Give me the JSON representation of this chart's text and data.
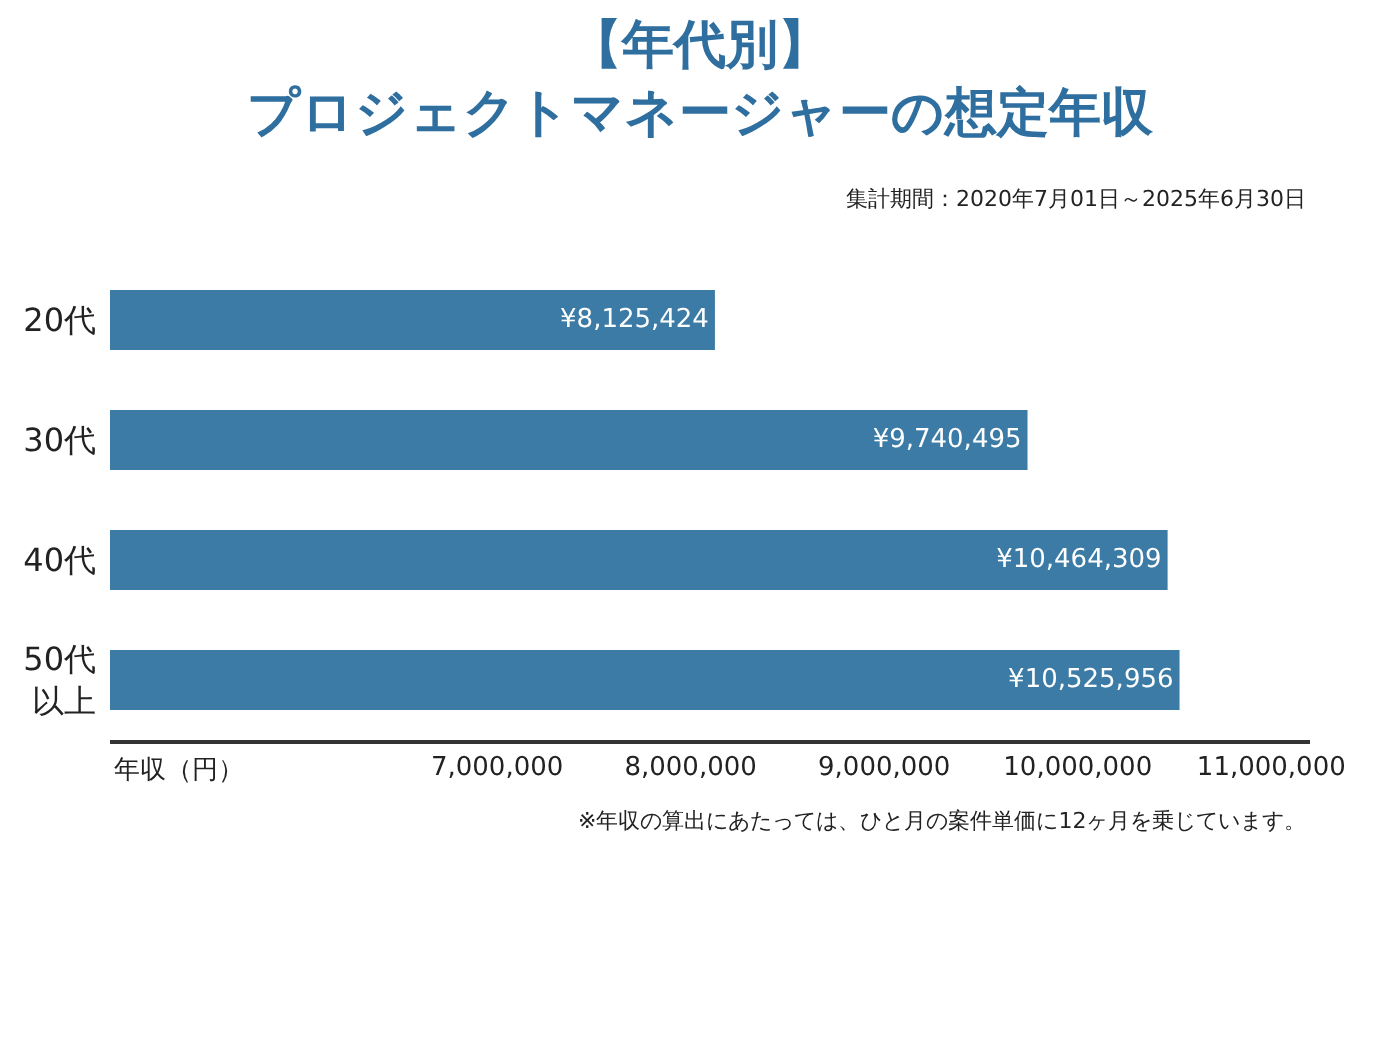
{
  "chart_data": {
    "type": "bar",
    "orientation": "horizontal",
    "title": "【年代別】プロジェクトマネージャーの想定年収",
    "subtitle": "集計期間：2020年7月01日～2025年6月30日",
    "xlabel": "年収（円）",
    "categories": [
      "20代",
      "30代",
      "40代",
      "50代以上"
    ],
    "values": [
      8125424,
      9740495,
      10464309,
      10525956
    ],
    "value_labels": [
      "¥8,125,424",
      "¥9,740,495",
      "¥10,464,309",
      "¥10,525,956"
    ],
    "color": "#3b7ba5",
    "xlim": [
      5000000,
      11200000
    ],
    "xticks": [
      {
        "value": 7000000,
        "label": "7,000,000"
      },
      {
        "value": 8000000,
        "label": "8,000,000"
      },
      {
        "value": 9000000,
        "label": "9,000,000"
      },
      {
        "value": 10000000,
        "label": "10,000,000"
      },
      {
        "value": 11000000,
        "label": "11,000,000"
      }
    ],
    "legend": false,
    "annotations": [
      "※年収の算出にあたっては、ひと月の案件単価に12ヶ月を乗じています。"
    ]
  }
}
